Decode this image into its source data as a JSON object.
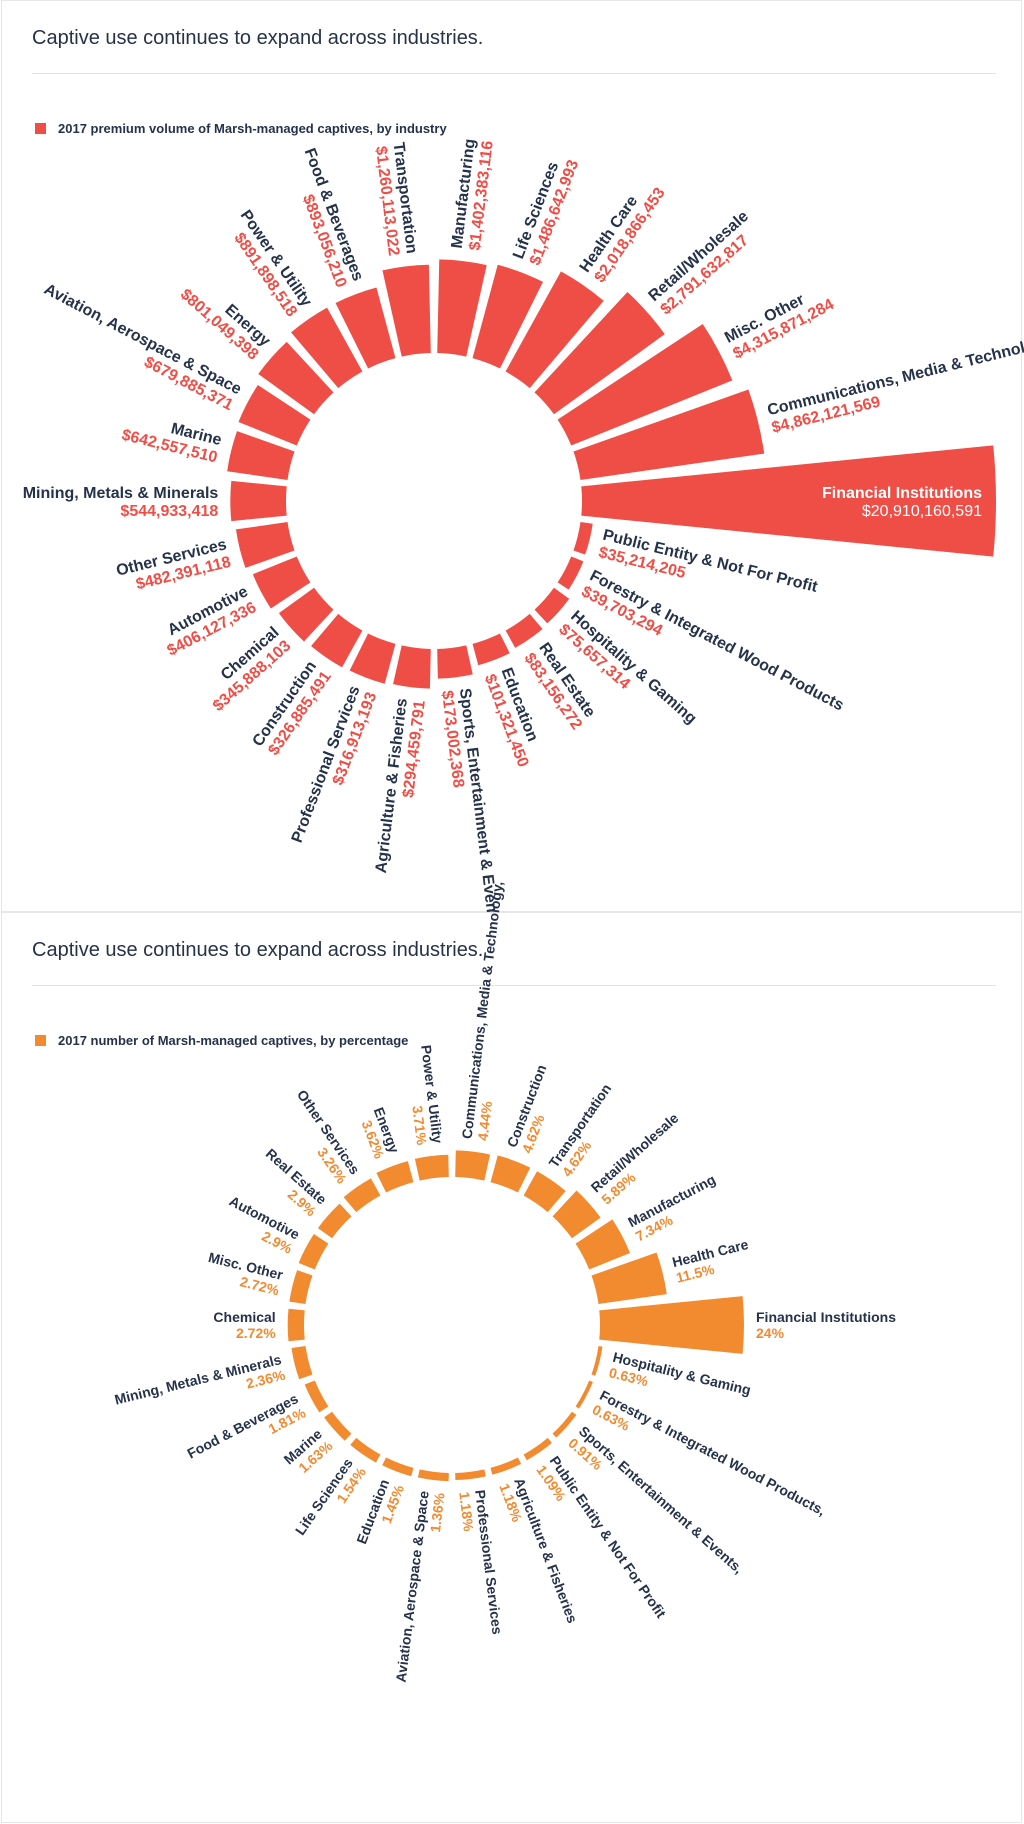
{
  "colors": {
    "volume": "#ef4e47",
    "count": "#f28a30",
    "label": "#26324a",
    "inside_label": "#ffffff"
  },
  "charts": [
    {
      "heading": "Captive use continues to expand across industries.",
      "legend": "2017 premium volume of Marsh-managed captives, by industry"
    },
    {
      "heading": "Captive use continues to expand across industries.",
      "legend": "2017 number of Marsh-managed captives, by percentage"
    }
  ],
  "chart_data": [
    {
      "type": "radial-bar",
      "title": "",
      "series": [
        {
          "categories": [
            "Financial Institutions",
            "Public Entity & Not For Profit",
            "Forestry & Integrated Wood Products",
            "Hospitality & Gaming",
            "Real Estate",
            "Education",
            "Sports, Entertainment & Events,",
            "Agriculture & Fisheries",
            "Professional Services",
            "Construction",
            "Chemical",
            "Automotive",
            "Other Services",
            "Mining, Metals & Minerals",
            "Marine",
            "Aviation, Aerospace & Space",
            "Energy",
            "Power & Utility",
            "Food & Beverages",
            "Transportation",
            "Manufacturing",
            "Life Sciences",
            "Health Care",
            "Retail/Wholesale",
            "Misc. Other",
            "Communications, Media & Technology"
          ],
          "value_labels": [
            "$20,910,160,591",
            "$35,214,205",
            "$39,703,294",
            "$75,657,314",
            "$83,156,272",
            "$101,321,450",
            "$173,002,368",
            "$294,459,791",
            "$316,913,193",
            "$326,885,491",
            "$345,888,103",
            "$406,127,336",
            "$482,391,118",
            "$544,933,418",
            "$642,557,510",
            "$679,885,371",
            "$801,049,398",
            "$891,898,518",
            "$893,056,210",
            "$1,260,113,022",
            "$1,402,383,116",
            "$1,486,642,993",
            "$2,018,866,453",
            "$2,791,632,817",
            "$4,315,871,284",
            "$4,862,121,569"
          ],
          "values": [
            20910160591,
            35214205,
            39703294,
            75657314,
            83156272,
            101321450,
            173002368,
            294459791,
            316913193,
            326885491,
            345888103,
            406127336,
            482391118,
            544933418,
            642557510,
            679885371,
            801049398,
            891898518,
            893056210,
            1260113022,
            1402383116,
            1486642993,
            2018866453,
            2791632817,
            4315871284,
            4862121569
          ]
        }
      ]
    },
    {
      "type": "radial-bar",
      "title": "",
      "series": [
        {
          "categories": [
            "Financial Institutions",
            "Hospitality & Gaming",
            "Forestry & Integrated Wood Products,",
            "Sports, Entertainment & Events,",
            "Public Entity & Not For Profit",
            "Agriculture & Fisheries",
            "Professional Services",
            "Aviation, Aerospace & Space",
            "Education",
            "Life Sciences",
            "Marine",
            "Food & Beverages",
            "Mining, Metals & Minerals",
            "Chemical",
            "Misc. Other",
            "Automotive",
            "Real Estate",
            "Other Services",
            "Energy",
            "Power & Utility",
            "Communications, Media & Technology,",
            "Construction",
            "Transportation",
            "Retail/Wholesale",
            "Manufacturing",
            "Health Care"
          ],
          "value_labels": [
            "24%",
            "0.63%",
            "0.63%",
            "0.91%",
            "1.09%",
            "1.18%",
            "1.18%",
            "1.36%",
            "1.45%",
            "1.54%",
            "1.63%",
            "1.81%",
            "2.36%",
            "2.72%",
            "2.72%",
            "2.9%",
            "2.9%",
            "3.26%",
            "3.62%",
            "3.71%",
            "4.44%",
            "4.62%",
            "4.62%",
            "5.89%",
            "7.34%",
            "11.5%"
          ],
          "values": [
            24,
            0.63,
            0.63,
            0.91,
            1.09,
            1.18,
            1.18,
            1.36,
            1.45,
            1.54,
            1.63,
            1.81,
            2.36,
            2.72,
            2.72,
            2.9,
            2.9,
            3.26,
            3.62,
            3.71,
            4.44,
            4.62,
            4.62,
            5.89,
            7.34,
            11.5
          ]
        }
      ]
    }
  ]
}
